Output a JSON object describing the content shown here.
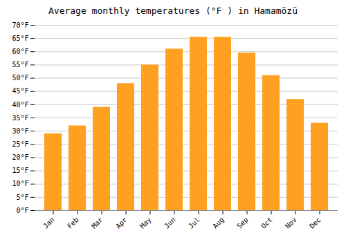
{
  "chart_data": {
    "type": "bar",
    "title": "Average monthly temperatures (°F ) in Hamamözü",
    "categories": [
      "Jan",
      "Feb",
      "Mar",
      "Apr",
      "May",
      "Jun",
      "Jul",
      "Aug",
      "Sep",
      "Oct",
      "Nov",
      "Dec"
    ],
    "values": [
      29,
      32,
      39,
      48,
      55,
      61,
      65.5,
      65.5,
      59.5,
      51,
      42,
      33
    ],
    "color": "#FFA020",
    "ylim": [
      0,
      70
    ],
    "yticks": [
      {
        "value": 0,
        "label": "0°F"
      },
      {
        "value": 5,
        "label": "5°F"
      },
      {
        "value": 10,
        "label": "10°F"
      },
      {
        "value": 15,
        "label": "15°F"
      },
      {
        "value": 20,
        "label": "20°F"
      },
      {
        "value": 25,
        "label": "25°F"
      },
      {
        "value": 30,
        "label": "30°F"
      },
      {
        "value": 35,
        "label": "35°F"
      },
      {
        "value": 40,
        "label": "40°F"
      },
      {
        "value": 45,
        "label": "45°F"
      },
      {
        "value": 50,
        "label": "50°F"
      },
      {
        "value": 55,
        "label": "55°F"
      },
      {
        "value": 60,
        "label": "60°F"
      },
      {
        "value": 65,
        "label": "65°F"
      },
      {
        "value": 70,
        "label": "70°F"
      }
    ],
    "grid": true
  }
}
